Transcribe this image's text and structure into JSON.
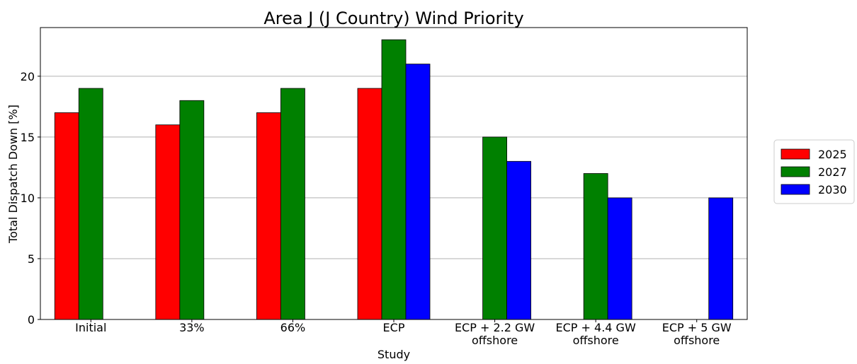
{
  "chart_data": {
    "type": "bar",
    "title": "Area J (J Country) Wind Priority",
    "xlabel": "Study",
    "ylabel": "Total Dispatch Down [%]",
    "categories": [
      [
        "Initial"
      ],
      [
        "33%"
      ],
      [
        "66%"
      ],
      [
        "ECP"
      ],
      [
        "ECP + 2.2 GW",
        "offshore"
      ],
      [
        "ECP + 4.4 GW",
        "offshore"
      ],
      [
        "ECP + 5 GW",
        "offshore"
      ]
    ],
    "series": [
      {
        "name": "2025",
        "color": "#ff0000",
        "values": [
          17,
          16,
          17,
          19,
          null,
          null,
          null
        ]
      },
      {
        "name": "2027",
        "color": "#008000",
        "values": [
          19,
          18,
          19,
          23,
          15,
          12,
          null
        ]
      },
      {
        "name": "2030",
        "color": "#0000ff",
        "values": [
          null,
          null,
          null,
          21,
          13,
          10,
          10
        ]
      }
    ],
    "ylim": [
      0,
      24
    ],
    "yticks": [
      0,
      5,
      10,
      15,
      20
    ],
    "grid": true,
    "legend_position": "right"
  }
}
